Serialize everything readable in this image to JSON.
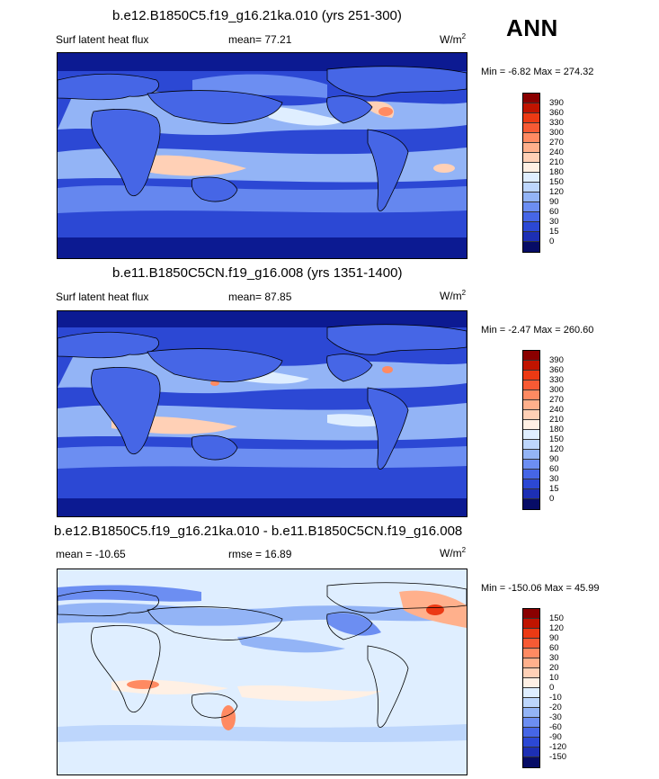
{
  "season_label": "ANN",
  "colors": {
    "raw": [
      "#8a0000",
      "#c01400",
      "#ec3a14",
      "#f75a34",
      "#ff8a62",
      "#ffb08c",
      "#ffd0b6",
      "#fff0e4",
      "#dfeeff",
      "#bdd6fc",
      "#93b4f6",
      "#6c8ef2",
      "#4666e6",
      "#2c48d4",
      "#1d2fb4",
      "#0c1a92",
      "#070c66"
    ],
    "diff": [
      "#8a0000",
      "#c01400",
      "#ec3a14",
      "#f75a34",
      "#ff8a62",
      "#ffb08c",
      "#ffd0b6",
      "#fff0e4",
      "#dfeeff",
      "#bdd6fc",
      "#93b4f6",
      "#6c8ef2",
      "#4666e6",
      "#2c48d4",
      "#1d2fb4",
      "#0c1a92",
      "#070c66"
    ]
  },
  "panels": [
    {
      "title": "b.e12.B1850C5.f19_g16.21ka.010 (yrs 251-300)",
      "variable": "Surf latent heat flux",
      "stat_text": "mean=  77.21",
      "units": "W/m",
      "units_exp": "2",
      "minmax": "Min =  -6.82 Max = 274.32",
      "levels": [
        "390",
        "360",
        "330",
        "300",
        "270",
        "240",
        "210",
        "180",
        "150",
        "120",
        "90",
        "60",
        "30",
        "15",
        "0"
      ]
    },
    {
      "title": "b.e11.B1850C5CN.f19_g16.008 (yrs 1351-1400)",
      "variable": "Surf latent heat flux",
      "stat_text": "mean=  87.85",
      "units": "W/m",
      "units_exp": "2",
      "minmax": "Min =  -2.47 Max = 260.60",
      "levels": [
        "390",
        "360",
        "330",
        "300",
        "270",
        "240",
        "210",
        "180",
        "150",
        "120",
        "90",
        "60",
        "30",
        "15",
        "0"
      ]
    },
    {
      "title": "b.e12.B1850C5.f19_g16.21ka.010 - b.e11.B1850C5CN.f19_g16.008",
      "variable": "mean = -10.65",
      "stat_text": "rmse =  16.89",
      "units": "W/m",
      "units_exp": "2",
      "minmax": "Min = -150.06 Max =  45.99",
      "levels": [
        "150",
        "120",
        "90",
        "60",
        "30",
        "20",
        "10",
        "0",
        "-10",
        "-20",
        "-30",
        "-60",
        "-90",
        "-120",
        "-150"
      ]
    }
  ],
  "chart_data": [
    {
      "type": "heatmap",
      "title": "b.e12.B1850C5.f19_g16.21ka.010 (yrs 251-300)",
      "field": "Surf latent heat flux",
      "units": "W/m2",
      "mean": 77.21,
      "min": -6.82,
      "max": 274.32,
      "contour_levels": [
        0,
        15,
        30,
        60,
        90,
        120,
        150,
        180,
        210,
        240,
        270,
        300,
        330,
        360,
        390
      ]
    },
    {
      "type": "heatmap",
      "title": "b.e11.B1850C5CN.f19_g16.008 (yrs 1351-1400)",
      "field": "Surf latent heat flux",
      "units": "W/m2",
      "mean": 87.85,
      "min": -2.47,
      "max": 260.6,
      "contour_levels": [
        0,
        15,
        30,
        60,
        90,
        120,
        150,
        180,
        210,
        240,
        270,
        300,
        330,
        360,
        390
      ]
    },
    {
      "type": "heatmap",
      "title": "b.e12.B1850C5.f19_g16.21ka.010 - b.e11.B1850C5CN.f19_g16.008",
      "units": "W/m2",
      "mean": -10.65,
      "rmse": 16.89,
      "min": -150.06,
      "max": 45.99,
      "contour_levels": [
        -150,
        -120,
        -90,
        -60,
        -30,
        -20,
        -10,
        0,
        10,
        20,
        30,
        60,
        90,
        120,
        150
      ]
    }
  ]
}
